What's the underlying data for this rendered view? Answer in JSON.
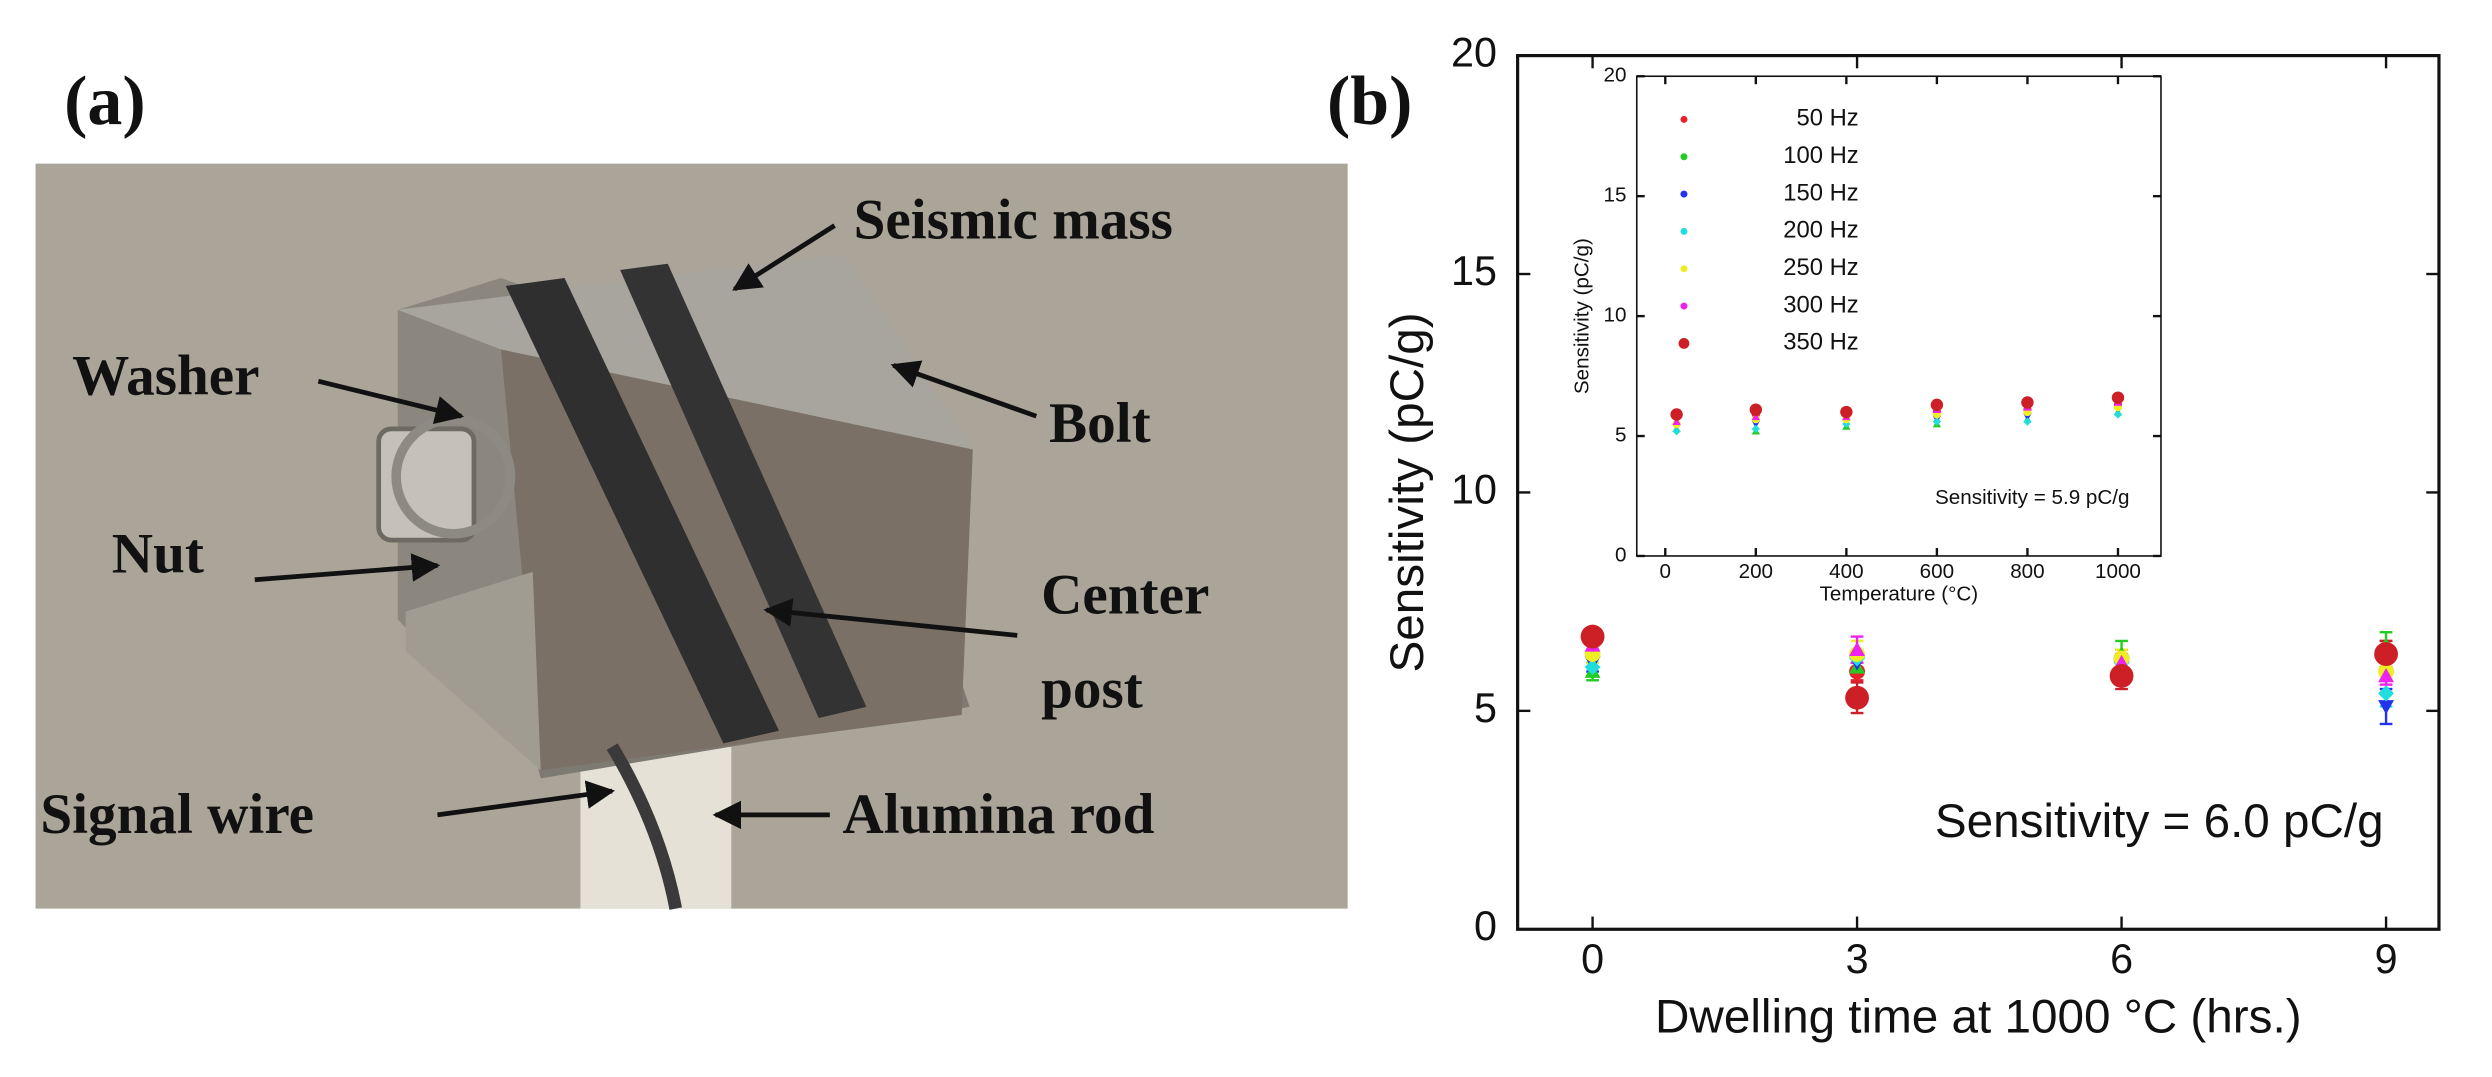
{
  "panel_a": {
    "label": "(a)",
    "callouts": {
      "seismic_mass": "Seismic mass",
      "washer": "Washer",
      "bolt": "Bolt",
      "nut": "Nut",
      "center_post": [
        "Center",
        "post"
      ],
      "signal_wire": "Signal wire",
      "alumina_rod": "Alumina rod"
    }
  },
  "chart_data": [
    {
      "type": "scatter",
      "panel_label": "(b)",
      "xlabel": "Dwelling time at 1000 °C (hrs.)",
      "ylabel": "Sensitivity (pC/g)",
      "annotation": "Sensitivity = 6.0 pC/g",
      "x": [
        0,
        3,
        6,
        9
      ],
      "xlim": [
        -0.85,
        9.6
      ],
      "xticks": [
        0,
        3,
        6,
        9
      ],
      "ylim": [
        0,
        20
      ],
      "yticks": [
        0,
        5,
        10,
        15,
        20
      ],
      "series": [
        {
          "color": "#e8202a",
          "values": [
            6.6,
            5.9,
            6.2,
            6.4
          ],
          "errors": [
            0.2,
            0.2,
            0.2,
            0.2
          ]
        },
        {
          "color": "#22cc22",
          "values": [
            5.9,
            6.0,
            6.3,
            6.5
          ],
          "errors": [
            0.2,
            0.2,
            0.3,
            0.3
          ]
        },
        {
          "color": "#2233ee",
          "values": [
            6.1,
            6.1,
            6.0,
            5.1
          ],
          "errors": [
            0.2,
            0.2,
            0.2,
            0.4
          ]
        },
        {
          "color": "#22dddd",
          "values": [
            6.0,
            6.2,
            6.1,
            5.4
          ],
          "errors": [
            0.2,
            0.2,
            0.2,
            0.3
          ]
        },
        {
          "color": "#eeee22",
          "values": [
            6.3,
            6.3,
            6.2,
            5.9
          ],
          "errors": [
            0.2,
            0.3,
            0.2,
            0.2
          ]
        },
        {
          "color": "#ee22ee",
          "values": [
            6.5,
            6.4,
            6.1,
            5.8
          ],
          "errors": [
            0.2,
            0.3,
            0.2,
            0.2
          ]
        },
        {
          "color": "#cc1f26",
          "values": [
            6.7,
            5.3,
            5.8,
            6.3
          ],
          "errors": [
            0.2,
            0.35,
            0.3,
            0.3
          ]
        }
      ]
    },
    {
      "type": "scatter",
      "xlabel": "Temperature (°C)",
      "ylabel": "Sensitivity (pC/g)",
      "annotation": "Sensitivity = 5.9 pC/g",
      "legend": "upper left",
      "x": [
        25,
        200,
        400,
        600,
        800,
        1000
      ],
      "xlim": [
        -63,
        1095
      ],
      "xticks": [
        0,
        200,
        400,
        600,
        800,
        1000
      ],
      "ylim": [
        0,
        20
      ],
      "yticks": [
        0,
        5,
        10,
        15,
        20
      ],
      "series": [
        {
          "name": "50 Hz",
          "color": "#e8202a",
          "values": [
            5.8,
            5.9,
            5.9,
            6.0,
            6.1,
            6.3
          ]
        },
        {
          "name": "100 Hz",
          "color": "#22cc22",
          "values": [
            5.3,
            5.2,
            5.4,
            5.5,
            5.7,
            6.0
          ]
        },
        {
          "name": "150 Hz",
          "color": "#2233ee",
          "values": [
            5.4,
            5.5,
            5.6,
            5.7,
            5.8,
            6.1
          ]
        },
        {
          "name": "200 Hz",
          "color": "#22dddd",
          "values": [
            5.2,
            5.3,
            5.5,
            5.6,
            5.6,
            5.9
          ]
        },
        {
          "name": "250 Hz",
          "color": "#eeee22",
          "values": [
            5.5,
            5.7,
            5.7,
            5.9,
            6.0,
            6.2
          ]
        },
        {
          "name": "300 Hz",
          "color": "#ee22ee",
          "values": [
            5.6,
            5.8,
            5.8,
            6.1,
            6.2,
            6.4
          ]
        },
        {
          "name": "350 Hz",
          "color": "#cc1f26",
          "values": [
            5.9,
            6.1,
            6.0,
            6.3,
            6.4,
            6.6
          ]
        }
      ]
    }
  ]
}
